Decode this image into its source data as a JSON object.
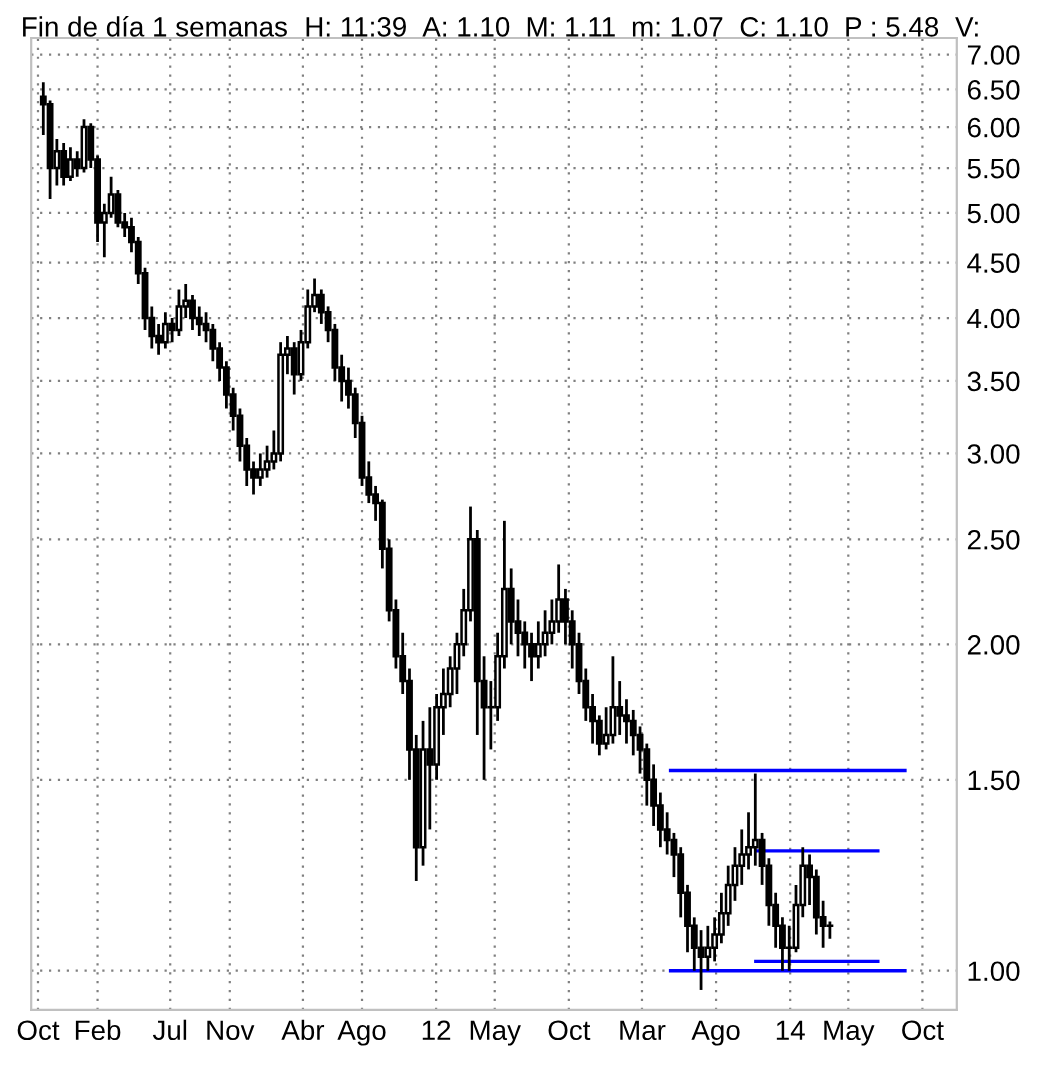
{
  "chart_data": {
    "type": "candlestick",
    "title": "Fin de día 1 semanas",
    "annotations": [
      "H: 11:39",
      "A: 1.10",
      "M: 1.11",
      "m: 1.07",
      "C: 1.10",
      "P : 5.48",
      "V:"
    ],
    "color": "#000000",
    "x": [
      "2009-10-12",
      "2009-10-26",
      "2009-11-09",
      "2009-11-23",
      "2009-12-07",
      "2009-12-21",
      "2010-01-04",
      "2010-01-18",
      "2010-02-01",
      "2010-02-15",
      "2010-03-01",
      "2010-03-15",
      "2010-03-29",
      "2010-04-12",
      "2010-04-26",
      "2010-05-10",
      "2010-05-24",
      "2010-06-07",
      "2010-06-21",
      "2010-07-05",
      "2010-07-19",
      "2010-08-02",
      "2010-08-16",
      "2010-08-30",
      "2010-09-13",
      "2010-09-27",
      "2010-10-11",
      "2010-10-25",
      "2010-11-08",
      "2010-11-22",
      "2010-12-06",
      "2010-12-20",
      "2011-01-03",
      "2011-01-17",
      "2011-01-31",
      "2011-02-14",
      "2011-02-28",
      "2011-03-14",
      "2011-03-28",
      "2011-04-11",
      "2011-04-25",
      "2011-05-09",
      "2011-05-23",
      "2011-06-06",
      "2011-06-20",
      "2011-07-04",
      "2011-07-18",
      "2011-08-01",
      "2011-08-15",
      "2011-08-29",
      "2011-09-12",
      "2011-09-26",
      "2011-10-10",
      "2011-10-24",
      "2011-11-07",
      "2011-11-21",
      "2011-12-05",
      "2011-12-19",
      "2012-01-02",
      "2012-01-16",
      "2012-01-30",
      "2012-02-13",
      "2012-02-27",
      "2012-03-12",
      "2012-03-26",
      "2012-04-09",
      "2012-04-23",
      "2012-05-07",
      "2012-05-21",
      "2012-06-04",
      "2012-06-18",
      "2012-07-02",
      "2012-07-16",
      "2012-07-30",
      "2012-08-13",
      "2012-08-27",
      "2012-09-10",
      "2012-09-24",
      "2012-10-08",
      "2012-10-22",
      "2012-11-05",
      "2012-11-19",
      "2012-12-03",
      "2012-12-17",
      "2012-12-31",
      "2013-01-14",
      "2013-01-28",
      "2013-02-11",
      "2013-02-25",
      "2013-03-11",
      "2013-03-25",
      "2013-04-08",
      "2013-04-22",
      "2013-05-06",
      "2013-05-20",
      "2013-06-03",
      "2013-06-17",
      "2013-07-01",
      "2013-07-15",
      "2013-07-29",
      "2013-08-12",
      "2013-08-26",
      "2013-09-09",
      "2013-09-23",
      "2013-10-07",
      "2013-10-21",
      "2013-11-04",
      "2013-11-18",
      "2013-12-02",
      "2013-12-16",
      "2013-12-30",
      "2014-01-13",
      "2014-01-27",
      "2014-02-10",
      "2014-02-24",
      "2014-03-10",
      "2014-03-24"
    ],
    "ohlc": [
      [
        6.4,
        6.6,
        5.9,
        6.3
      ],
      [
        6.3,
        6.35,
        5.15,
        5.5
      ],
      [
        5.5,
        5.85,
        5.3,
        5.7
      ],
      [
        5.7,
        5.8,
        5.3,
        5.4
      ],
      [
        5.4,
        5.75,
        5.35,
        5.6
      ],
      [
        5.6,
        5.7,
        5.4,
        5.5
      ],
      [
        5.5,
        6.1,
        5.45,
        6.0
      ],
      [
        6.0,
        6.05,
        5.5,
        5.6
      ],
      [
        5.6,
        5.65,
        4.7,
        4.9
      ],
      [
        4.9,
        5.1,
        4.55,
        5.0
      ],
      [
        5.0,
        5.4,
        4.95,
        5.2
      ],
      [
        5.2,
        5.25,
        4.85,
        4.9
      ],
      [
        4.9,
        5.0,
        4.75,
        4.85
      ],
      [
        4.85,
        4.95,
        4.6,
        4.7
      ],
      [
        4.7,
        4.75,
        4.3,
        4.4
      ],
      [
        4.4,
        4.45,
        3.9,
        4.0
      ],
      [
        4.0,
        4.1,
        3.75,
        3.85
      ],
      [
        3.85,
        3.95,
        3.7,
        3.8
      ],
      [
        3.8,
        4.05,
        3.75,
        3.95
      ],
      [
        3.95,
        4.0,
        3.8,
        3.9
      ],
      [
        3.9,
        4.25,
        3.85,
        4.1
      ],
      [
        4.1,
        4.3,
        4.0,
        4.15
      ],
      [
        4.15,
        4.2,
        3.9,
        4.0
      ],
      [
        4.0,
        4.1,
        3.85,
        3.95
      ],
      [
        3.95,
        4.05,
        3.8,
        3.9
      ],
      [
        3.9,
        3.95,
        3.65,
        3.75
      ],
      [
        3.75,
        3.8,
        3.5,
        3.6
      ],
      [
        3.6,
        3.65,
        3.3,
        3.4
      ],
      [
        3.4,
        3.45,
        3.15,
        3.25
      ],
      [
        3.25,
        3.3,
        2.95,
        3.05
      ],
      [
        3.05,
        3.1,
        2.8,
        2.9
      ],
      [
        2.9,
        2.95,
        2.75,
        2.85
      ],
      [
        2.85,
        3.0,
        2.8,
        2.9
      ],
      [
        2.9,
        3.05,
        2.85,
        2.95
      ],
      [
        2.95,
        3.15,
        2.9,
        3.0
      ],
      [
        3.0,
        3.8,
        2.95,
        3.7
      ],
      [
        3.7,
        3.85,
        3.55,
        3.75
      ],
      [
        3.75,
        3.8,
        3.4,
        3.55
      ],
      [
        3.55,
        3.9,
        3.5,
        3.8
      ],
      [
        3.8,
        4.25,
        3.75,
        4.1
      ],
      [
        4.1,
        4.35,
        4.05,
        4.2
      ],
      [
        4.2,
        4.25,
        3.95,
        4.05
      ],
      [
        4.05,
        4.1,
        3.8,
        3.9
      ],
      [
        3.9,
        3.95,
        3.5,
        3.6
      ],
      [
        3.6,
        3.7,
        3.35,
        3.5
      ],
      [
        3.5,
        3.6,
        3.3,
        3.4
      ],
      [
        3.4,
        3.45,
        3.1,
        3.2
      ],
      [
        3.2,
        3.25,
        2.8,
        2.85
      ],
      [
        2.85,
        2.95,
        2.7,
        2.75
      ],
      [
        2.75,
        2.8,
        2.6,
        2.7
      ],
      [
        2.7,
        2.72,
        2.35,
        2.45
      ],
      [
        2.45,
        2.5,
        2.1,
        2.15
      ],
      [
        2.15,
        2.2,
        1.9,
        1.95
      ],
      [
        1.95,
        2.05,
        1.8,
        1.85
      ],
      [
        1.85,
        1.9,
        1.5,
        1.6
      ],
      [
        1.6,
        1.65,
        1.21,
        1.3
      ],
      [
        1.3,
        1.7,
        1.25,
        1.6
      ],
      [
        1.6,
        1.75,
        1.35,
        1.55
      ],
      [
        1.55,
        1.8,
        1.5,
        1.75
      ],
      [
        1.75,
        1.9,
        1.65,
        1.8
      ],
      [
        1.8,
        1.95,
        1.75,
        1.9
      ],
      [
        1.9,
        2.05,
        1.8,
        2.0
      ],
      [
        2.0,
        2.25,
        1.95,
        2.15
      ],
      [
        2.15,
        2.68,
        2.1,
        2.5
      ],
      [
        2.5,
        2.55,
        1.65,
        1.85
      ],
      [
        1.85,
        1.95,
        1.5,
        1.75
      ],
      [
        1.75,
        1.85,
        1.6,
        1.75
      ],
      [
        1.75,
        2.05,
        1.7,
        1.95
      ],
      [
        1.95,
        2.6,
        1.9,
        2.25
      ],
      [
        2.25,
        2.35,
        2.0,
        2.1
      ],
      [
        2.1,
        2.2,
        1.95,
        2.05
      ],
      [
        2.05,
        2.1,
        1.9,
        2.0
      ],
      [
        2.0,
        2.05,
        1.85,
        1.95
      ],
      [
        1.95,
        2.1,
        1.9,
        2.0
      ],
      [
        2.0,
        2.15,
        1.95,
        2.05
      ],
      [
        2.05,
        2.2,
        2.0,
        2.1
      ],
      [
        2.1,
        2.37,
        2.05,
        2.2
      ],
      [
        2.2,
        2.25,
        2.0,
        2.1
      ],
      [
        2.1,
        2.15,
        1.9,
        2.0
      ],
      [
        2.0,
        2.05,
        1.8,
        1.85
      ],
      [
        1.85,
        1.9,
        1.7,
        1.75
      ],
      [
        1.75,
        1.8,
        1.62,
        1.7
      ],
      [
        1.7,
        1.72,
        1.58,
        1.62
      ],
      [
        1.62,
        1.75,
        1.6,
        1.65
      ],
      [
        1.65,
        1.95,
        1.62,
        1.75
      ],
      [
        1.75,
        1.85,
        1.65,
        1.72
      ],
      [
        1.72,
        1.78,
        1.62,
        1.7
      ],
      [
        1.7,
        1.74,
        1.58,
        1.65
      ],
      [
        1.65,
        1.68,
        1.52,
        1.6
      ],
      [
        1.6,
        1.62,
        1.42,
        1.5
      ],
      [
        1.5,
        1.55,
        1.36,
        1.42
      ],
      [
        1.42,
        1.46,
        1.3,
        1.35
      ],
      [
        1.35,
        1.4,
        1.28,
        1.32
      ],
      [
        1.32,
        1.34,
        1.22,
        1.28
      ],
      [
        1.28,
        1.3,
        1.12,
        1.18
      ],
      [
        1.18,
        1.2,
        1.04,
        1.1
      ],
      [
        1.1,
        1.12,
        1.0,
        1.05
      ],
      [
        1.05,
        1.09,
        0.96,
        1.03
      ],
      [
        1.03,
        1.1,
        1.0,
        1.05
      ],
      [
        1.05,
        1.12,
        1.02,
        1.08
      ],
      [
        1.08,
        1.18,
        1.06,
        1.13
      ],
      [
        1.13,
        1.25,
        1.1,
        1.2
      ],
      [
        1.2,
        1.3,
        1.16,
        1.25
      ],
      [
        1.25,
        1.35,
        1.2,
        1.28
      ],
      [
        1.28,
        1.4,
        1.24,
        1.3
      ],
      [
        1.3,
        1.52,
        1.25,
        1.32
      ],
      [
        1.32,
        1.34,
        1.2,
        1.25
      ],
      [
        1.25,
        1.27,
        1.1,
        1.15
      ],
      [
        1.15,
        1.18,
        1.05,
        1.1
      ],
      [
        1.1,
        1.12,
        1.0,
        1.05
      ],
      [
        1.05,
        1.1,
        1.0,
        1.05
      ],
      [
        1.05,
        1.2,
        1.04,
        1.15
      ],
      [
        1.15,
        1.3,
        1.12,
        1.25
      ],
      [
        1.25,
        1.28,
        1.15,
        1.22
      ],
      [
        1.22,
        1.24,
        1.08,
        1.12
      ],
      [
        1.12,
        1.16,
        1.05,
        1.1
      ],
      [
        1.1,
        1.11,
        1.07,
        1.1
      ]
    ],
    "series": [
      {
        "type": "line",
        "color": "#0000ff",
        "x": [
          "2013-04-29",
          "2014-08-26"
        ],
        "values": [
          1.53,
          1.53
        ]
      },
      {
        "type": "line",
        "color": "#0000ff",
        "x": [
          "2013-10-22",
          "2014-07-01"
        ],
        "values": [
          1.29,
          1.29
        ]
      },
      {
        "type": "line",
        "color": "#0000ff",
        "x": [
          "2013-10-22",
          "2014-07-01"
        ],
        "values": [
          1.02,
          1.02
        ]
      },
      {
        "type": "line",
        "color": "#0000ff",
        "x": [
          "2013-04-29",
          "2014-08-26"
        ],
        "values": [
          1.0,
          1.0
        ]
      }
    ],
    "log": "y",
    "xlim": [
      "2009-09-17",
      "2014-12-11"
    ],
    "xticks": [
      {
        "value": "2009-10-01",
        "label": "Oct"
      },
      {
        "value": "2010-02-01",
        "label": "Feb"
      },
      {
        "value": "2010-07-01",
        "label": "Jul"
      },
      {
        "value": "2010-11-01",
        "label": "Nov"
      },
      {
        "value": "2011-04-01",
        "label": "Abr"
      },
      {
        "value": "2011-08-01",
        "label": "Ago"
      },
      {
        "value": "2012-01-01",
        "label": "12"
      },
      {
        "value": "2012-05-01",
        "label": "May"
      },
      {
        "value": "2012-10-01",
        "label": "Oct"
      },
      {
        "value": "2013-03-01",
        "label": "Mar"
      },
      {
        "value": "2013-08-01",
        "label": "Ago"
      },
      {
        "value": "2014-01-01",
        "label": "14"
      },
      {
        "value": "2014-05-01",
        "label": "May"
      },
      {
        "value": "2014-10-01",
        "label": "Oct"
      }
    ],
    "ylim": [
      0.92,
      7.25
    ],
    "yticks": [
      {
        "value": 1,
        "label": "1.00"
      },
      {
        "value": 1.5,
        "label": "1.50"
      },
      {
        "value": 2,
        "label": "2.00"
      },
      {
        "value": 2.5,
        "label": "2.50"
      },
      {
        "value": 3,
        "label": "3.00"
      },
      {
        "value": 3.5,
        "label": "3.50"
      },
      {
        "value": 4,
        "label": "4.00"
      },
      {
        "value": 4.5,
        "label": "4.50"
      },
      {
        "value": 5,
        "label": "5.00"
      },
      {
        "value": 5.5,
        "label": "5.50"
      },
      {
        "value": 6,
        "label": "6.00"
      },
      {
        "value": 6.5,
        "label": "6.50"
      },
      {
        "value": 7,
        "label": "7.00"
      }
    ],
    "grid": true,
    "line_style": "solid"
  }
}
